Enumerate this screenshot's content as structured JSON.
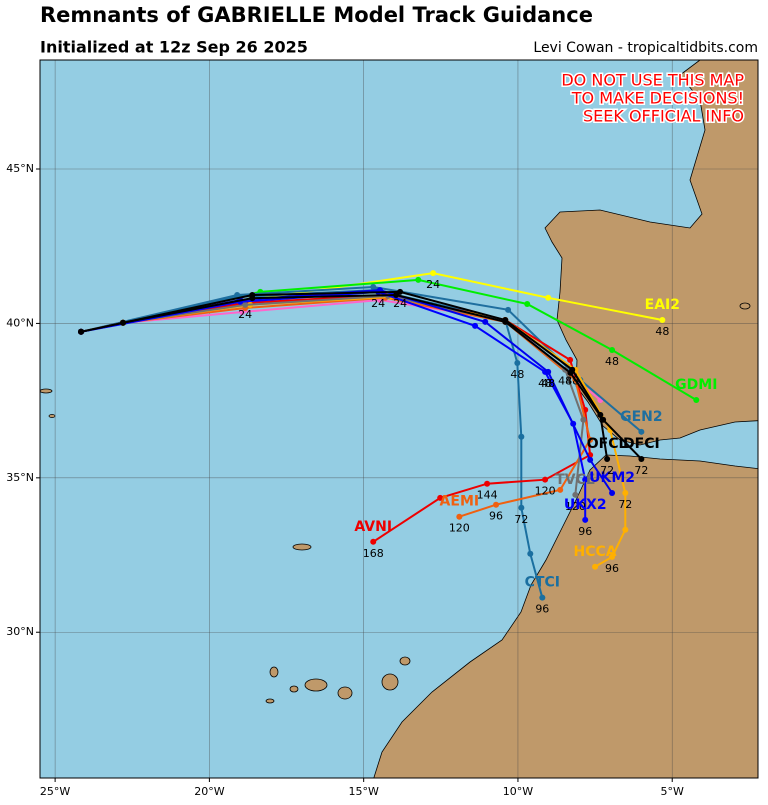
{
  "header": {
    "title": "Remnants of GABRIELLE Model Track Guidance",
    "subtitle": "Initialized at 12z Sep 26 2025",
    "credit": "Levi Cowan - tropicaltidbits.com"
  },
  "warning": [
    "DO NOT USE THIS MAP",
    "TO MAKE DECISIONS!",
    "SEEK OFFICIAL INFO"
  ],
  "map": {
    "lonlim": [
      -25.49,
      -2.22
    ],
    "latlim": [
      25.28,
      48.53
    ],
    "lonticks": [
      {
        "value": -25,
        "label": "25°W"
      },
      {
        "value": -20,
        "label": "20°W"
      },
      {
        "value": -15,
        "label": "15°W"
      },
      {
        "value": -10,
        "label": "10°W"
      },
      {
        "value": -5,
        "label": "5°W"
      }
    ],
    "latticks": [
      {
        "value": 30,
        "label": "30°N"
      },
      {
        "value": 35,
        "label": "35°N"
      },
      {
        "value": 40,
        "label": "40°N"
      },
      {
        "value": 45,
        "label": "45°N"
      }
    ],
    "grid": true,
    "tracks": [
      {
        "color": "#ff66cc",
        "lon": [
          -24.16,
          -22.8,
          -18.94,
          -14.47,
          -10.41,
          -7.33
        ],
        "lat": [
          39.73,
          40.02,
          40.37,
          40.76,
          40.11,
          37.52
        ],
        "hours": [
          null,
          null,
          null,
          null,
          null,
          null
        ]
      },
      {
        "name": "EAI2",
        "color": "#ffff00",
        "lon": [
          -24.16,
          -22.8,
          -18.68,
          -12.75,
          -9.02,
          -5.32
        ],
        "lat": [
          39.73,
          40.02,
          40.76,
          41.63,
          40.83,
          40.11
        ],
        "hours": [
          null,
          null,
          null,
          24,
          null,
          48
        ]
      },
      {
        "name": "GDMI",
        "color": "#00ee00",
        "lon": [
          -24.16,
          -22.8,
          -18.35,
          -13.23,
          -9.7,
          -6.95,
          -4.22
        ],
        "lat": [
          39.73,
          40.02,
          41.02,
          41.41,
          40.63,
          39.14,
          37.52
        ],
        "hours": [
          null,
          null,
          null,
          null,
          null,
          48,
          null
        ]
      },
      {
        "name": "GEN2",
        "color": "#1f6f9f",
        "lon": [
          -24.16,
          -19.1,
          -14.69,
          -10.32,
          -7.98,
          -6.0
        ],
        "lat": [
          39.73,
          40.92,
          41.18,
          40.44,
          38.17,
          36.49
        ],
        "hours": [
          null,
          null,
          null,
          null,
          null,
          null
        ]
      },
      {
        "name": "CTCI",
        "color": "#1a6fa0",
        "lon": [
          -24.16,
          -22.8,
          -19.1,
          -14.63,
          -10.41,
          -10.02,
          -9.89,
          -9.89,
          -9.6,
          -9.21
        ],
        "lat": [
          39.73,
          40.02,
          40.86,
          41.08,
          40.11,
          38.72,
          36.33,
          34.03,
          32.54,
          31.12
        ],
        "hours": [
          null,
          null,
          null,
          null,
          null,
          48,
          null,
          72,
          null,
          96
        ]
      },
      {
        "name": "AVNI",
        "color": "#ee0000",
        "lon": [
          -24.16,
          -22.8,
          -18.84,
          -14.3,
          -10.41,
          -8.31,
          -7.82,
          -7.66,
          -9.12,
          -11.0,
          -12.52,
          -14.69
        ],
        "lat": [
          39.73,
          40.02,
          40.66,
          40.92,
          40.11,
          38.82,
          37.2,
          35.74,
          34.94,
          34.81,
          34.35,
          32.93
        ],
        "hours": [
          null,
          null,
          24,
          null,
          null,
          null,
          null,
          null,
          120,
          144,
          null,
          168
        ]
      },
      {
        "name": "AEMI",
        "color": "#f06010",
        "lon": [
          -24.16,
          -22.8,
          -18.84,
          -14.3,
          -10.41,
          -8.14,
          -7.66,
          -8.63,
          -10.71,
          -11.9
        ],
        "lat": [
          39.73,
          40.02,
          40.5,
          40.83,
          40.05,
          38.17,
          36.23,
          34.61,
          34.13,
          33.74
        ],
        "hours": [
          null,
          null,
          null,
          null,
          null,
          null,
          null,
          null,
          96,
          120
        ]
      },
      {
        "name": "HCCA",
        "color": "#ffb000",
        "lon": [
          -24.16,
          -22.8,
          -18.68,
          -14.14,
          -10.41,
          -8.14,
          -7.01,
          -6.52,
          -6.52,
          -6.95,
          -7.5
        ],
        "lat": [
          39.73,
          40.02,
          40.6,
          40.86,
          40.11,
          38.5,
          36.55,
          34.51,
          33.32,
          32.44,
          32.12
        ],
        "hours": [
          null,
          null,
          null,
          null,
          null,
          null,
          null,
          72,
          null,
          96,
          null
        ]
      },
      {
        "name": "TVCE",
        "color": "#707070",
        "lon": [
          -24.16,
          -22.8,
          -18.84,
          -14.21,
          -10.41,
          -8.47,
          -7.88,
          -8.14
        ],
        "lat": [
          39.73,
          40.02,
          40.6,
          40.89,
          40.08,
          38.5,
          36.88,
          34.45
        ],
        "hours": [
          null,
          null,
          null,
          null,
          null,
          48,
          null,
          120
        ]
      },
      {
        "name": "UKX2",
        "color": "#0000ff",
        "lon": [
          -24.16,
          -19.0,
          -14.53,
          -11.39,
          -9.12,
          -8.21,
          -7.82,
          -7.82
        ],
        "lat": [
          39.73,
          40.7,
          41.02,
          39.92,
          38.43,
          36.75,
          34.94,
          33.64
        ],
        "hours": [
          null,
          null,
          24,
          null,
          48,
          null,
          null,
          96
        ]
      },
      {
        "name": "UKM2",
        "color": "#0000ee",
        "lon": [
          -24.16,
          -19.0,
          -14.47,
          -11.06,
          -9.02,
          -7.66,
          -6.95
        ],
        "lat": [
          39.73,
          40.76,
          41.08,
          40.05,
          38.43,
          35.58,
          34.51
        ],
        "hours": [
          null,
          null,
          null,
          null,
          48,
          null,
          null
        ]
      },
      {
        "name": "OFCL",
        "color": "#000000",
        "lon": [
          -24.16,
          -22.8,
          -18.61,
          -13.82,
          -10.41,
          -8.24,
          -7.33,
          -7.11
        ],
        "lat": [
          39.73,
          40.02,
          40.92,
          41.02,
          40.11,
          38.5,
          37.04,
          35.61
        ],
        "hours": [
          null,
          null,
          null,
          24,
          null,
          48,
          null,
          72
        ]
      },
      {
        "name": "DFCI",
        "color": "#000000",
        "lon": [
          -24.16,
          -22.8,
          -18.61,
          -13.95,
          -10.41,
          -8.3,
          -7.24,
          -6.0
        ],
        "lat": [
          39.73,
          40.02,
          40.82,
          40.92,
          40.05,
          38.4,
          36.88,
          35.61
        ],
        "hours": [
          null,
          null,
          null,
          null,
          null,
          null,
          null,
          72
        ]
      }
    ]
  }
}
